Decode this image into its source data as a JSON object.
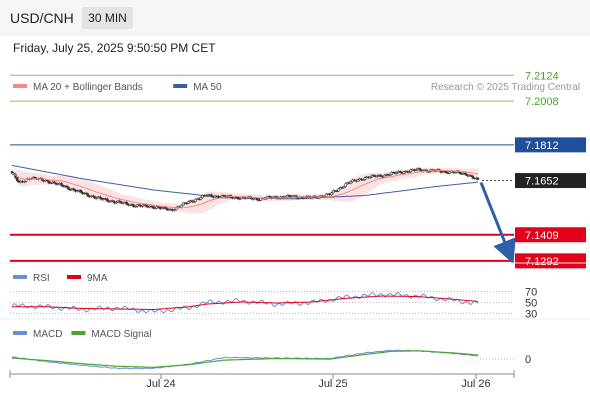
{
  "header": {
    "symbol": "USD/CNH",
    "timeframe": "30 MIN"
  },
  "datetime": "Friday, July 25, 2025 9:50:50 PM CET",
  "colors": {
    "ma20": "#f28b82",
    "ma50": "#3b5ea8",
    "band": "#fbdada",
    "resistance_green": "#7cc35a",
    "pivot_blue": "#1f4e9a",
    "support_red": "#e3001b",
    "current": "#222222",
    "rsi": "#6a8fd8",
    "rsi_ma": "#e3001b",
    "macd": "#6a8fd8",
    "macd_signal": "#4aa52a",
    "arrow": "#2f5fa8"
  },
  "chart_data": [
    {
      "type": "candlestick",
      "panel": "price",
      "legend": [
        {
          "label": "MA 20 + Bollinger Bands",
          "color_key": "ma20"
        },
        {
          "label": "MA 50",
          "color_key": "ma50"
        }
      ],
      "watermark": "Research © 2025 Trading Central",
      "ylim": [
        7.126,
        7.217
      ],
      "x_ticks": [
        "Jul 24",
        "Jul 25",
        "Jul 26"
      ],
      "levels": [
        {
          "value": 7.2124,
          "label": "7.2124",
          "kind": "resistance_green"
        },
        {
          "value": 7.2008,
          "label": "7.2008",
          "kind": "resistance_green"
        },
        {
          "value": 7.1812,
          "label": "7.1812",
          "kind": "pivot_blue"
        },
        {
          "value": 7.1652,
          "label": "7.1652",
          "kind": "current"
        },
        {
          "value": 7.1409,
          "label": "7.1409",
          "kind": "support_red"
        },
        {
          "value": 7.1292,
          "label": "7.1292",
          "kind": "support_red"
        }
      ],
      "close_anchors": [
        [
          0,
          7.1685
        ],
        [
          4,
          7.164
        ],
        [
          10,
          7.1665
        ],
        [
          20,
          7.165
        ],
        [
          30,
          7.1625
        ],
        [
          40,
          7.1595
        ],
        [
          50,
          7.157
        ],
        [
          60,
          7.1555
        ],
        [
          70,
          7.154
        ],
        [
          80,
          7.1535
        ],
        [
          90,
          7.152
        ],
        [
          100,
          7.1555
        ],
        [
          110,
          7.1585
        ],
        [
          120,
          7.158
        ],
        [
          130,
          7.1575
        ],
        [
          140,
          7.157
        ],
        [
          150,
          7.1578
        ],
        [
          160,
          7.158
        ],
        [
          170,
          7.1575
        ],
        [
          180,
          7.159
        ],
        [
          190,
          7.164
        ],
        [
          200,
          7.1665
        ],
        [
          210,
          7.1675
        ],
        [
          220,
          7.169
        ],
        [
          230,
          7.17
        ],
        [
          240,
          7.1695
        ],
        [
          250,
          7.169
        ],
        [
          258,
          7.168
        ],
        [
          264,
          7.1652
        ]
      ],
      "ma50_anchors": [
        [
          0,
          7.172
        ],
        [
          40,
          7.166
        ],
        [
          80,
          7.161
        ],
        [
          120,
          7.1575
        ],
        [
          160,
          7.157
        ],
        [
          200,
          7.1585
        ],
        [
          240,
          7.1625
        ],
        [
          264,
          7.1645
        ]
      ],
      "forecast": {
        "from": 7.1652,
        "to": 7.1292
      }
    },
    {
      "type": "line",
      "panel": "rsi",
      "legend": [
        {
          "label": "RSI",
          "color_key": "rsi"
        },
        {
          "label": "9MA",
          "color_key": "rsi_ma"
        }
      ],
      "ylim": [
        25,
        75
      ],
      "levels": [
        {
          "value": 70,
          "label": "70"
        },
        {
          "value": 50,
          "label": "50"
        },
        {
          "value": 30,
          "label": "30"
        }
      ],
      "rsi_anchors": [
        [
          0,
          44
        ],
        [
          20,
          42
        ],
        [
          40,
          37
        ],
        [
          60,
          40
        ],
        [
          80,
          33
        ],
        [
          100,
          40
        ],
        [
          110,
          50
        ],
        [
          130,
          53
        ],
        [
          150,
          47
        ],
        [
          170,
          50
        ],
        [
          190,
          60
        ],
        [
          210,
          65
        ],
        [
          230,
          62
        ],
        [
          250,
          54
        ],
        [
          264,
          48
        ]
      ],
      "ma_anchors": [
        [
          0,
          42
        ],
        [
          20,
          42
        ],
        [
          40,
          39
        ],
        [
          60,
          38
        ],
        [
          80,
          37
        ],
        [
          100,
          42
        ],
        [
          110,
          47
        ],
        [
          130,
          51
        ],
        [
          150,
          49
        ],
        [
          170,
          51
        ],
        [
          190,
          58
        ],
        [
          210,
          62
        ],
        [
          230,
          61
        ],
        [
          250,
          56
        ],
        [
          264,
          52
        ]
      ]
    },
    {
      "type": "line",
      "panel": "macd",
      "legend": [
        {
          "label": "MACD",
          "color_key": "macd"
        },
        {
          "label": "MACD Signal",
          "color_key": "macd_signal"
        }
      ],
      "ylim": [
        -0.0025,
        0.0035
      ],
      "levels": [
        {
          "value": 0,
          "label": "0"
        }
      ],
      "macd_anchors": [
        [
          0,
          0.0004
        ],
        [
          20,
          -0.0005
        ],
        [
          40,
          -0.0012
        ],
        [
          60,
          -0.0018
        ],
        [
          80,
          -0.0018
        ],
        [
          100,
          -0.001
        ],
        [
          120,
          0.0003
        ],
        [
          150,
          0.0002
        ],
        [
          180,
          0.0001
        ],
        [
          200,
          0.0012
        ],
        [
          215,
          0.0017
        ],
        [
          230,
          0.0016
        ],
        [
          250,
          0.0011
        ],
        [
          264,
          0.0006
        ]
      ],
      "signal_anchors": [
        [
          0,
          0.0002
        ],
        [
          20,
          -0.0003
        ],
        [
          40,
          -0.0009
        ],
        [
          60,
          -0.0014
        ],
        [
          80,
          -0.0016
        ],
        [
          100,
          -0.0011
        ],
        [
          120,
          -0.0002
        ],
        [
          150,
          0.0001
        ],
        [
          180,
          0.0
        ],
        [
          200,
          0.0009
        ],
        [
          215,
          0.0015
        ],
        [
          230,
          0.0016
        ],
        [
          250,
          0.0012
        ],
        [
          264,
          0.0008
        ]
      ]
    }
  ]
}
